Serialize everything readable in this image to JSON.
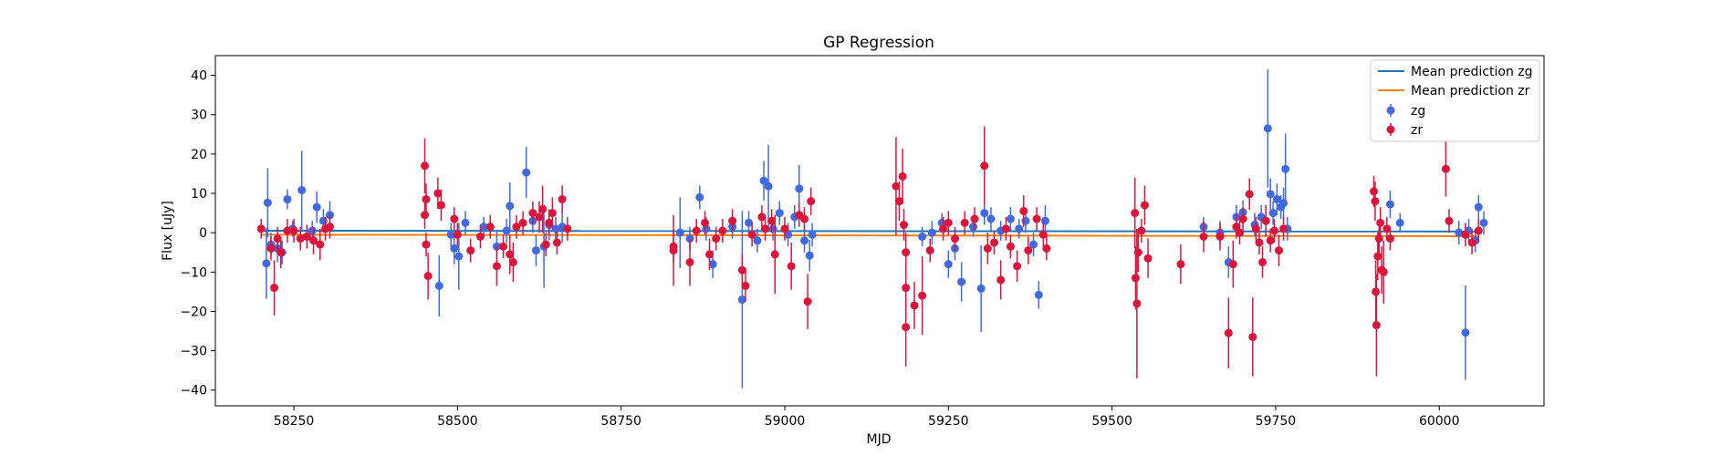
{
  "chart_data": {
    "type": "scatter",
    "title": "GP Regression",
    "xlabel": "MJD",
    "ylabel": "Flux [uJy]",
    "xlim": [
      58130,
      60160
    ],
    "ylim": [
      -44,
      45
    ],
    "xticks": [
      58250,
      58500,
      58750,
      59000,
      59250,
      59500,
      59750,
      60000
    ],
    "yticks": [
      -40,
      -30,
      -20,
      -10,
      0,
      10,
      20,
      30,
      40
    ],
    "grid": false,
    "legend_position": "top-right",
    "mean_lines": [
      {
        "name": "Mean prediction zg",
        "color": "#1f77b4",
        "x": [
          58200,
          60060
        ],
        "y": [
          0.5,
          0.3
        ]
      },
      {
        "name": "Mean prediction zr",
        "color": "#ff7f0e",
        "x": [
          58200,
          60060
        ],
        "y": [
          -0.5,
          -0.9
        ]
      }
    ],
    "series": [
      {
        "name": "zg",
        "color": "#4169e1",
        "points": [
          [
            58210,
            7.6,
            8.8
          ],
          [
            58208,
            -7.8,
            9.0
          ],
          [
            58215,
            -3.0,
            3.0
          ],
          [
            58225,
            -4.0,
            3.5
          ],
          [
            58232,
            -5.0,
            3.0
          ],
          [
            58240,
            8.5,
            2.5
          ],
          [
            58248,
            1.0,
            2.0
          ],
          [
            58262,
            10.8,
            10.0
          ],
          [
            58270,
            -1.0,
            3.0
          ],
          [
            58278,
            0.5,
            2.5
          ],
          [
            58285,
            6.5,
            4.0
          ],
          [
            58295,
            3.0,
            3.0
          ],
          [
            58305,
            4.5,
            3.5
          ],
          [
            58472,
            -13.5,
            7.8
          ],
          [
            58490,
            -0.5,
            3.0
          ],
          [
            58495,
            -4.0,
            4.0
          ],
          [
            58502,
            -6.0,
            8.5
          ],
          [
            58512,
            2.5,
            3.0
          ],
          [
            58540,
            1.5,
            2.5
          ],
          [
            58560,
            -3.5,
            4.0
          ],
          [
            58575,
            0.5,
            3.0
          ],
          [
            58580,
            6.8,
            6.0
          ],
          [
            58605,
            15.3,
            6.5
          ],
          [
            58615,
            3.0,
            3.0
          ],
          [
            58620,
            -4.5,
            4.0
          ],
          [
            58632,
            -3.5,
            10.5
          ],
          [
            58640,
            2.0,
            4.0
          ],
          [
            58650,
            1.0,
            3.0
          ],
          [
            58660,
            1.5,
            4.0
          ],
          [
            58840,
            0.0,
            9.0
          ],
          [
            58855,
            -1.5,
            3.0
          ],
          [
            58870,
            9.0,
            3.0
          ],
          [
            58880,
            1.0,
            3.0
          ],
          [
            58890,
            -8.0,
            3.5
          ],
          [
            58920,
            1.5,
            3.0
          ],
          [
            58935,
            -17.0,
            22.5
          ],
          [
            58945,
            2.5,
            3.0
          ],
          [
            58958,
            -2.0,
            3.0
          ],
          [
            58968,
            13.2,
            5.0
          ],
          [
            58975,
            11.8,
            10.5
          ],
          [
            58982,
            1.0,
            3.0
          ],
          [
            58992,
            5.0,
            3.0
          ],
          [
            59005,
            -0.5,
            3.0
          ],
          [
            59015,
            4.0,
            3.0
          ],
          [
            59022,
            11.2,
            6.0
          ],
          [
            59030,
            -2.0,
            3.0
          ],
          [
            59038,
            -5.8,
            4.0
          ],
          [
            59042,
            -0.5,
            3.0
          ],
          [
            59210,
            -1.0,
            2.5
          ],
          [
            59225,
            0.0,
            3.0
          ],
          [
            59240,
            2.5,
            2.5
          ],
          [
            59250,
            -8.0,
            3.5
          ],
          [
            59260,
            -4.0,
            3.0
          ],
          [
            59270,
            -12.5,
            5.0
          ],
          [
            59288,
            1.5,
            2.5
          ],
          [
            59300,
            -14.2,
            11.0
          ],
          [
            59305,
            5.0,
            3.0
          ],
          [
            59315,
            3.5,
            3.0
          ],
          [
            59330,
            0.5,
            2.5
          ],
          [
            59345,
            3.5,
            3.0
          ],
          [
            59358,
            1.0,
            2.5
          ],
          [
            59368,
            3.0,
            3.0
          ],
          [
            59380,
            -3.0,
            3.0
          ],
          [
            59388,
            -15.8,
            3.5
          ],
          [
            59398,
            3.0,
            4.0
          ],
          [
            59640,
            1.5,
            2.5
          ],
          [
            59665,
            0.0,
            3.0
          ],
          [
            59678,
            -7.5,
            4.0
          ],
          [
            59690,
            4.0,
            3.0
          ],
          [
            59700,
            5.2,
            3.0
          ],
          [
            59718,
            2.0,
            3.0
          ],
          [
            59728,
            4.0,
            3.0
          ],
          [
            59738,
            26.5,
            15.0
          ],
          [
            59742,
            9.8,
            4.0
          ],
          [
            59746,
            5.0,
            3.0
          ],
          [
            59752,
            8.5,
            4.0
          ],
          [
            59758,
            6.5,
            3.0
          ],
          [
            59762,
            7.5,
            4.0
          ],
          [
            59765,
            16.2,
            9.0
          ],
          [
            59768,
            1.0,
            3.0
          ],
          [
            59925,
            7.2,
            3.5
          ],
          [
            59940,
            2.5,
            2.5
          ],
          [
            60030,
            0.0,
            3.0
          ],
          [
            60040,
            -25.4,
            12.0
          ],
          [
            60045,
            0.5,
            3.0
          ],
          [
            60055,
            -2.0,
            3.0
          ],
          [
            60060,
            6.5,
            3.0
          ],
          [
            60068,
            2.5,
            3.0
          ]
        ]
      },
      {
        "name": "zr",
        "color": "#dc143c",
        "points": [
          [
            58200,
            1.0,
            2.5
          ],
          [
            58215,
            -4.0,
            3.0
          ],
          [
            58220,
            -14.0,
            7.0
          ],
          [
            58225,
            -1.5,
            3.0
          ],
          [
            58230,
            -5.0,
            4.0
          ],
          [
            58240,
            0.5,
            3.0
          ],
          [
            58250,
            0.5,
            3.0
          ],
          [
            58260,
            -1.5,
            3.0
          ],
          [
            58270,
            -1.0,
            3.0
          ],
          [
            58280,
            -2.0,
            3.5
          ],
          [
            58290,
            -3.0,
            4.0
          ],
          [
            58298,
            1.0,
            3.0
          ],
          [
            58305,
            1.5,
            3.0
          ],
          [
            58450,
            17.0,
            7.0
          ],
          [
            58452,
            8.5,
            4.0
          ],
          [
            58450,
            4.5,
            3.5
          ],
          [
            58452,
            -3.0,
            3.0
          ],
          [
            58455,
            -11.0,
            6.0
          ],
          [
            58470,
            10.0,
            4.0
          ],
          [
            58475,
            7.0,
            4.0
          ],
          [
            58495,
            3.5,
            3.0
          ],
          [
            58500,
            -0.5,
            3.0
          ],
          [
            58520,
            -4.5,
            3.0
          ],
          [
            58535,
            -1.0,
            3.0
          ],
          [
            58550,
            1.5,
            3.0
          ],
          [
            58560,
            -8.5,
            5.0
          ],
          [
            58570,
            -3.5,
            3.0
          ],
          [
            58580,
            -5.5,
            5.0
          ],
          [
            58585,
            -7.5,
            5.0
          ],
          [
            58590,
            1.5,
            3.0
          ],
          [
            58600,
            2.5,
            3.0
          ],
          [
            58615,
            5.0,
            3.0
          ],
          [
            58625,
            4.0,
            4.0
          ],
          [
            58630,
            6.0,
            6.0
          ],
          [
            58635,
            -3.0,
            3.0
          ],
          [
            58640,
            2.5,
            3.0
          ],
          [
            58645,
            5.0,
            4.0
          ],
          [
            58652,
            -2.5,
            3.0
          ],
          [
            58660,
            8.5,
            3.5
          ],
          [
            58668,
            1.0,
            3.0
          ],
          [
            58830,
            -3.5,
            4.0
          ],
          [
            58830,
            -4.5,
            9.0
          ],
          [
            58855,
            -7.5,
            6.0
          ],
          [
            58865,
            0.5,
            3.0
          ],
          [
            58878,
            2.5,
            3.0
          ],
          [
            58885,
            -5.5,
            4.0
          ],
          [
            58895,
            -1.5,
            3.0
          ],
          [
            58905,
            0.5,
            3.0
          ],
          [
            58920,
            3.0,
            3.0
          ],
          [
            58935,
            -9.5,
            4.0
          ],
          [
            58940,
            -13.5,
            4.0
          ],
          [
            58950,
            -0.5,
            3.0
          ],
          [
            58965,
            4.0,
            3.0
          ],
          [
            58970,
            1.0,
            3.0
          ],
          [
            58980,
            3.0,
            3.0
          ],
          [
            58985,
            -5.5,
            10.0
          ],
          [
            59000,
            1.0,
            3.0
          ],
          [
            59010,
            -8.5,
            6.0
          ],
          [
            59022,
            4.5,
            3.0
          ],
          [
            59030,
            3.5,
            3.0
          ],
          [
            59035,
            -17.5,
            7.0
          ],
          [
            59040,
            8.0,
            3.5
          ],
          [
            59170,
            11.8,
            12.5
          ],
          [
            59175,
            8.0,
            5.0
          ],
          [
            59180,
            14.3,
            7.0
          ],
          [
            59182,
            2.0,
            4.0
          ],
          [
            59185,
            -5.0,
            5.0
          ],
          [
            59185,
            -14.0,
            6.0
          ],
          [
            59185,
            -24.0,
            10.0
          ],
          [
            59198,
            -18.5,
            6.0
          ],
          [
            59210,
            -16.0,
            10.0
          ],
          [
            59222,
            -4.5,
            3.0
          ],
          [
            59242,
            1.0,
            3.0
          ],
          [
            59250,
            2.5,
            3.0
          ],
          [
            59260,
            -1.5,
            3.0
          ],
          [
            59275,
            2.5,
            3.0
          ],
          [
            59290,
            3.5,
            3.0
          ],
          [
            59305,
            17.0,
            10.0
          ],
          [
            59310,
            -4.0,
            4.0
          ],
          [
            59320,
            -2.5,
            3.0
          ],
          [
            59330,
            -12.0,
            5.0
          ],
          [
            59338,
            1.0,
            3.0
          ],
          [
            59345,
            -3.5,
            3.0
          ],
          [
            59355,
            -8.5,
            4.0
          ],
          [
            59365,
            5.5,
            4.0
          ],
          [
            59372,
            -4.5,
            3.5
          ],
          [
            59385,
            3.5,
            3.0
          ],
          [
            59395,
            -0.5,
            3.0
          ],
          [
            59400,
            -4.0,
            3.0
          ],
          [
            59535,
            5.0,
            9.0
          ],
          [
            59536,
            -11.5,
            8.0
          ],
          [
            59538,
            -18.0,
            19.0
          ],
          [
            59540,
            -5.0,
            5.0
          ],
          [
            59545,
            0.5,
            3.0
          ],
          [
            59550,
            7.0,
            5.0
          ],
          [
            59555,
            -6.5,
            5.0
          ],
          [
            59605,
            -8.0,
            5.0
          ],
          [
            59640,
            -1.0,
            4.0
          ],
          [
            59665,
            -1.0,
            3.5
          ],
          [
            59678,
            -25.5,
            9.0
          ],
          [
            59685,
            -8.0,
            6.0
          ],
          [
            59690,
            1.5,
            3.0
          ],
          [
            59695,
            0.0,
            3.0
          ],
          [
            59700,
            3.5,
            3.0
          ],
          [
            59710,
            9.8,
            4.0
          ],
          [
            59715,
            -26.5,
            10.0
          ],
          [
            59720,
            1.0,
            3.0
          ],
          [
            59725,
            -2.5,
            3.0
          ],
          [
            59730,
            -7.5,
            4.0
          ],
          [
            59735,
            3.0,
            4.0
          ],
          [
            59742,
            -2.0,
            3.0
          ],
          [
            59748,
            0.5,
            3.0
          ],
          [
            59755,
            -4.5,
            4.0
          ],
          [
            59762,
            1.0,
            3.0
          ],
          [
            59900,
            10.5,
            4.0
          ],
          [
            59902,
            8.0,
            5.0
          ],
          [
            59903,
            -15.0,
            8.0
          ],
          [
            59904,
            -23.5,
            13.0
          ],
          [
            59906,
            -6.0,
            6.0
          ],
          [
            59908,
            -1.5,
            4.0
          ],
          [
            59910,
            2.5,
            4.0
          ],
          [
            59912,
            -9.5,
            6.0
          ],
          [
            59915,
            -10.0,
            8.0
          ],
          [
            59920,
            1.0,
            3.0
          ],
          [
            59925,
            -1.5,
            3.0
          ],
          [
            60010,
            16.2,
            7.0
          ],
          [
            60015,
            3.0,
            3.0
          ],
          [
            60040,
            -0.5,
            3.0
          ],
          [
            60050,
            -2.5,
            3.0
          ],
          [
            60060,
            0.5,
            3.0
          ]
        ]
      }
    ]
  }
}
